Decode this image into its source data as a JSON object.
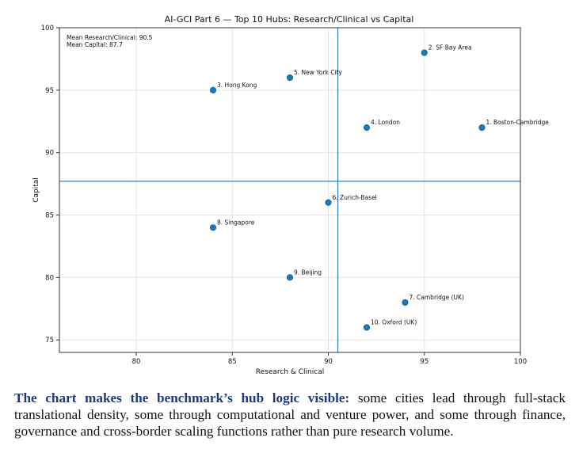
{
  "chart_data": {
    "type": "scatter",
    "title": "AI-GCI Part 6 — Top 10 Hubs: Research/Clinical vs Capital",
    "xlabel": "Research & Clinical",
    "ylabel": "Capital",
    "xlim": [
      76,
      100
    ],
    "ylim": [
      74,
      100
    ],
    "xticks": [
      80,
      85,
      90,
      95,
      100
    ],
    "yticks": [
      75,
      80,
      85,
      90,
      95,
      100
    ],
    "grid": true,
    "point_color": "#1f77b4",
    "mean_line_color": "#1f77b4",
    "means": {
      "research_clinical": 90.5,
      "capital": 87.7,
      "research_label": "Mean Research/Clinical: 90.5",
      "capital_label": "Mean Capital: 87.7"
    },
    "points": [
      {
        "label": "1. Boston-Cambridge",
        "x": 98,
        "y": 92
      },
      {
        "label": "2. SF Bay Area",
        "x": 95,
        "y": 98
      },
      {
        "label": "3. Hong Kong",
        "x": 84,
        "y": 95
      },
      {
        "label": "4. London",
        "x": 92,
        "y": 92
      },
      {
        "label": "5. New York City",
        "x": 88,
        "y": 96
      },
      {
        "label": "6. Zurich-Basel",
        "x": 90,
        "y": 86
      },
      {
        "label": "7. Cambridge (UK)",
        "x": 94,
        "y": 78
      },
      {
        "label": "8. Singapore",
        "x": 84,
        "y": 84
      },
      {
        "label": "9. Beijing",
        "x": 88,
        "y": 80
      },
      {
        "label": "10. Oxford (UK)",
        "x": 92,
        "y": 76
      }
    ]
  },
  "caption": {
    "lead": "The chart makes the benchmark’s hub logic visible:",
    "body": " some cities lead through full-stack translational density, some through computational and venture power, and some through finance, governance and cross-border scaling functions rather than pure research volume."
  }
}
